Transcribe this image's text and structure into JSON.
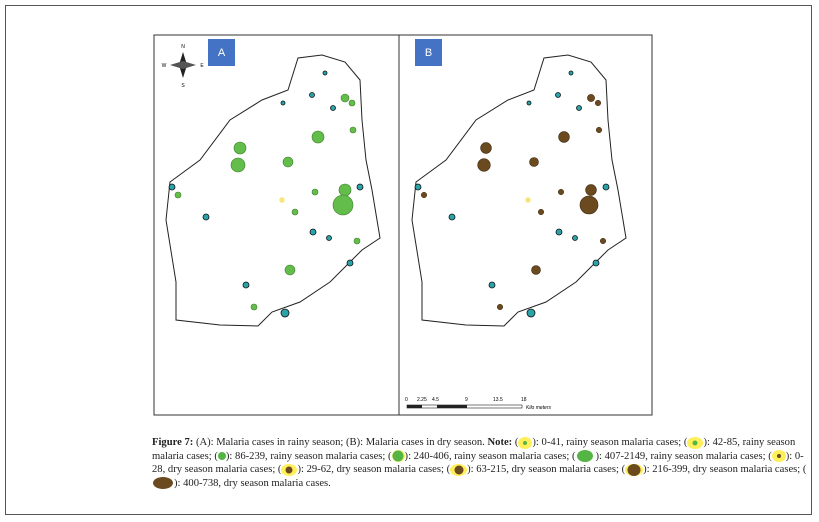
{
  "panels": [
    {
      "label": "A"
    },
    {
      "label": "B"
    }
  ],
  "compass": {
    "north": "N",
    "south": "S",
    "east": "E",
    "west": "W"
  },
  "scale_bar": {
    "ticks": [
      "0",
      "2.25",
      "4.5",
      "9",
      "13.5",
      "18"
    ],
    "unit": "Kilo meters"
  },
  "caption": {
    "figure_label": "Figure 7:",
    "text": "(A): Malaria cases in rainy season; (B): Malaria cases in dry season.",
    "note_label": "Note:",
    "legend": [
      {
        "before": "(",
        "after": "): 0-41, rainy season malaria cases;"
      },
      {
        "before": "(",
        "after": "): 42-85, rainy season malaria cases;"
      },
      {
        "before": "(",
        "after": "): 86-239, rainy season malaria cases;"
      },
      {
        "before": "(",
        "after": "): 240-406, rainy season malaria cases;"
      },
      {
        "before": "(",
        "after": "): 407-2149, rainy season malaria cases;"
      },
      {
        "before": "(",
        "after": "): 0-28, dry season malaria cases;"
      },
      {
        "before": "(",
        "after": "): 29-62, dry season malaria cases;"
      },
      {
        "before": "(",
        "after": "): 63-215, dry season malaria cases;"
      },
      {
        "before": "(",
        "after": "): 216-399, dry season malaria cases;"
      },
      {
        "before": "(",
        "after": "): 400-738, dry season malaria cases."
      }
    ]
  }
}
